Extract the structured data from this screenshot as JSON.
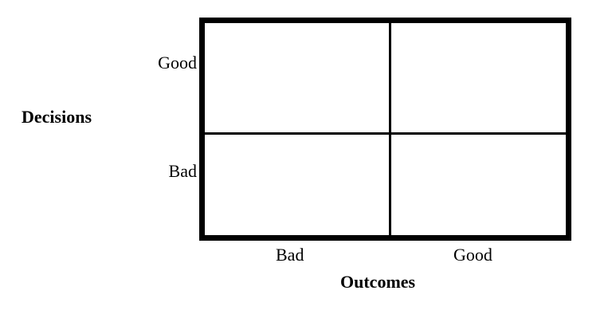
{
  "y_axis": {
    "title": "Decisions",
    "labels": [
      "Good",
      "Bad"
    ]
  },
  "x_axis": {
    "title": "Outcomes",
    "labels": [
      "Bad",
      "Good"
    ]
  },
  "grid": {
    "rows": 2,
    "columns": 2
  }
}
